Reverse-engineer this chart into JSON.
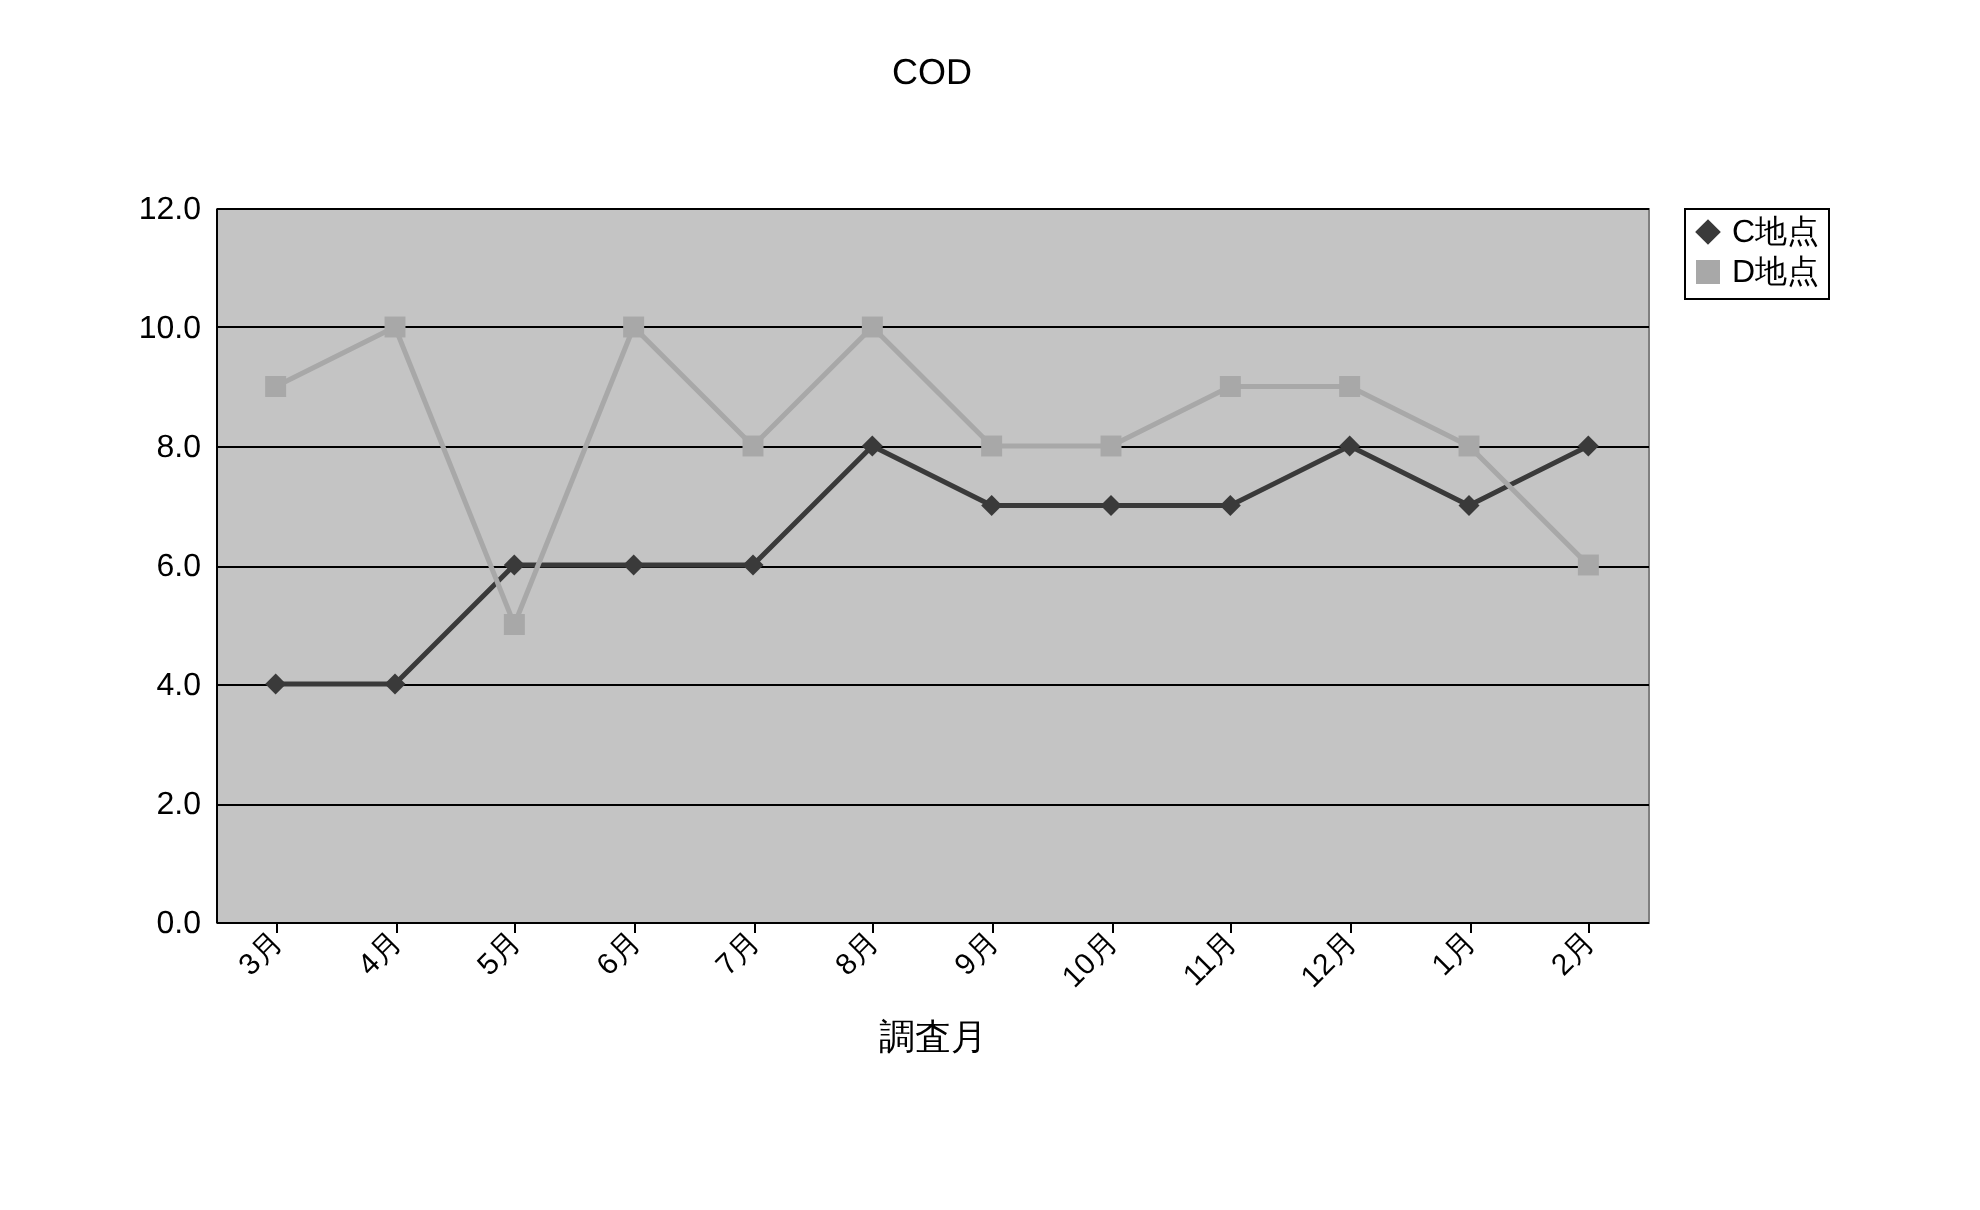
{
  "chart_data": {
    "type": "line",
    "title": "COD",
    "xlabel": "調査月",
    "categories": [
      "3月",
      "4月",
      "5月",
      "6月",
      "7月",
      "8月",
      "9月",
      "10月",
      "11月",
      "12月",
      "1月",
      "2月"
    ],
    "series": [
      {
        "name": "C地点",
        "color": "#3a3a3a",
        "marker": "diamond",
        "values": [
          4,
          4,
          6,
          6,
          6,
          8,
          7,
          7,
          7,
          8,
          7,
          8
        ]
      },
      {
        "name": "D地点",
        "color": "#a8a8a8",
        "marker": "square",
        "values": [
          9,
          10,
          5,
          10,
          8,
          10,
          8,
          8,
          9,
          9,
          8,
          6
        ]
      }
    ],
    "ylim": [
      0,
      12
    ],
    "yticks": [
      {
        "value": 0,
        "label": "0.0"
      },
      {
        "value": 2,
        "label": "2.0"
      },
      {
        "value": 4,
        "label": "4.0"
      },
      {
        "value": 6,
        "label": "6.0"
      },
      {
        "value": 8,
        "label": "8.0"
      },
      {
        "value": 10,
        "label": "10.0"
      },
      {
        "value": 12,
        "label": "12.0"
      }
    ],
    "grid": "y",
    "legend": "right",
    "line_style": "solid"
  }
}
